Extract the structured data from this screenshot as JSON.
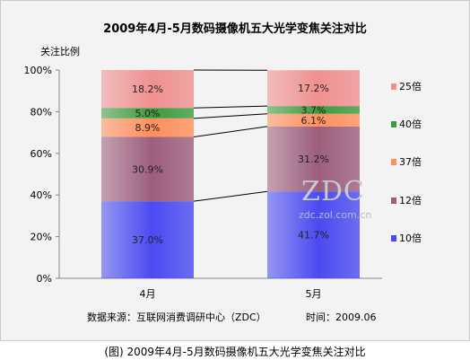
{
  "chart_data": {
    "type": "bar",
    "stacked": true,
    "title": "2009年4月-5月数码摄像机五大光学变焦关注对比",
    "ylabel": "关注比例",
    "yticks": [
      "0%",
      "20%",
      "40%",
      "60%",
      "80%",
      "100%"
    ],
    "ylim": [
      0,
      100
    ],
    "categories": [
      "4月",
      "5月"
    ],
    "series": [
      {
        "name": "10倍",
        "values": [
          37.0,
          41.7
        ],
        "labels": [
          "37.0%",
          "41.7%"
        ],
        "color": "#4a4af2"
      },
      {
        "name": "12倍",
        "values": [
          30.9,
          31.2
        ],
        "labels": [
          "30.9%",
          "31.2%"
        ],
        "color": "#9c5e7c"
      },
      {
        "name": "37倍",
        "values": [
          8.9,
          6.1
        ],
        "labels": [
          "8.9%",
          "6.1%"
        ],
        "color": "#ff8f5c"
      },
      {
        "name": "40倍",
        "values": [
          5.0,
          3.7
        ],
        "labels": [
          "5.0%",
          "3.7%"
        ],
        "color": "#3d9a3d"
      },
      {
        "name": "25倍",
        "values": [
          18.2,
          17.2
        ],
        "labels": [
          "18.2%",
          "17.2%"
        ],
        "color": "#f09090"
      }
    ],
    "legend_position": "right",
    "grid": false
  },
  "source_note": "数据来源：互联网消费调研中心（ZDC）",
  "time_note": "时间：2009.06",
  "watermark": {
    "logo": "ZDC",
    "url": "zdc.zol.com.cn"
  },
  "caption": "(图) 2009年4月-5月数码摄像机五大光学变焦关注对比"
}
